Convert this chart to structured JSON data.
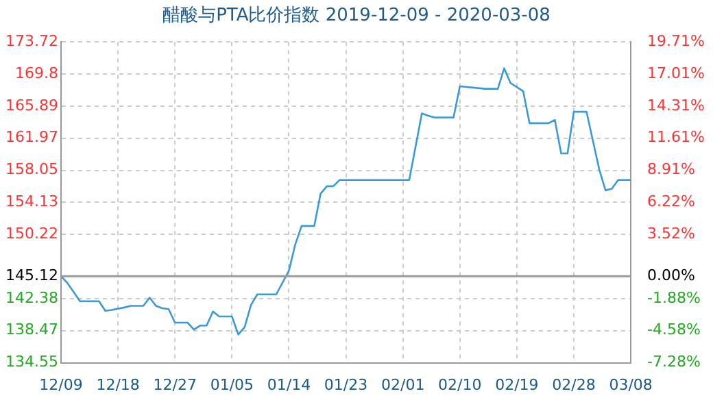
{
  "chart_data": {
    "type": "line",
    "title": "醋酸与PTA比价指数 2019-12-09 - 2020-03-08",
    "x": [
      "2019-12-09",
      "2019-12-10",
      "2019-12-12",
      "2019-12-15",
      "2019-12-16",
      "2019-12-17",
      "2019-12-19",
      "2019-12-20",
      "2019-12-22",
      "2019-12-23",
      "2019-12-24",
      "2019-12-25",
      "2019-12-26",
      "2019-12-27",
      "2019-12-29",
      "2019-12-30",
      "2019-12-31",
      "2020-01-01",
      "2020-01-02",
      "2020-01-03",
      "2020-01-05",
      "2020-01-06",
      "2020-01-07",
      "2020-01-08",
      "2020-01-09",
      "2020-01-12",
      "2020-01-14",
      "2020-01-15",
      "2020-01-16",
      "2020-01-18",
      "2020-01-19",
      "2020-01-20",
      "2020-01-21",
      "2020-01-22",
      "2020-02-02",
      "2020-02-04",
      "2020-02-05",
      "2020-02-06",
      "2020-02-09",
      "2020-02-10",
      "2020-02-14",
      "2020-02-16",
      "2020-02-17",
      "2020-02-18",
      "2020-02-20",
      "2020-02-21",
      "2020-02-24",
      "2020-02-25",
      "2020-02-26",
      "2020-02-27",
      "2020-02-28",
      "2020-03-01",
      "2020-03-03",
      "2020-03-04",
      "2020-03-05",
      "2020-03-06",
      "2020-03-08"
    ],
    "series": [
      {
        "color": "#3a9ad9",
        "values": [
          145.12,
          144.3,
          142.06,
          142.06,
          140.9,
          141.0,
          141.3,
          141.5,
          141.5,
          142.5,
          141.5,
          141.2,
          141.1,
          139.45,
          139.45,
          138.6,
          139.1,
          139.1,
          140.8,
          140.2,
          140.2,
          138.0,
          138.9,
          141.6,
          142.9,
          142.9,
          145.8,
          149.0,
          151.25,
          151.25,
          155.2,
          156.1,
          156.1,
          156.86,
          156.86,
          165.0,
          164.7,
          164.5,
          164.5,
          168.3,
          168.0,
          168.0,
          170.5,
          168.7,
          167.7,
          163.8,
          163.8,
          164.2,
          160.1,
          160.1,
          165.2,
          165.2,
          158.2,
          155.6,
          155.8,
          156.86,
          156.86
        ]
      }
    ],
    "xlim": [
      "2019-12-09",
      "2020-03-08"
    ],
    "xticks": [
      {
        "value": "2019-12-09",
        "label": "12/09"
      },
      {
        "value": "2019-12-18",
        "label": "12/18"
      },
      {
        "value": "2019-12-27",
        "label": "12/27"
      },
      {
        "value": "2020-01-05",
        "label": "01/05"
      },
      {
        "value": "2020-01-14",
        "label": "01/14"
      },
      {
        "value": "2020-01-23",
        "label": "01/23"
      },
      {
        "value": "2020-02-01",
        "label": "02/01"
      },
      {
        "value": "2020-02-10",
        "label": "02/10"
      },
      {
        "value": "2020-02-19",
        "label": "02/19"
      },
      {
        "value": "2020-02-28",
        "label": "02/28"
      },
      {
        "value": "2020-03-08",
        "label": "03/08"
      }
    ],
    "ylim": [
      134.55,
      173.72
    ],
    "yticks": [
      134.55,
      138.47,
      142.38,
      145.12,
      150.22,
      154.13,
      158.05,
      161.97,
      165.89,
      169.8,
      173.72
    ],
    "y2lim": [
      -7.28,
      19.71
    ],
    "y2ticks": [
      {
        "value": -7.28,
        "label": "-7.28%"
      },
      {
        "value": -4.58,
        "label": "-4.58%"
      },
      {
        "value": -1.88,
        "label": "-1.88%"
      },
      {
        "value": 0,
        "label": "0.00%"
      },
      {
        "value": 3.52,
        "label": "3.52%"
      },
      {
        "value": 6.22,
        "label": "6.22%"
      },
      {
        "value": 8.91,
        "label": "8.91%"
      },
      {
        "value": 11.61,
        "label": "11.61%"
      },
      {
        "value": 14.31,
        "label": "14.31%"
      },
      {
        "value": 17.01,
        "label": "17.01%"
      },
      {
        "value": 19.71,
        "label": "19.71%"
      }
    ],
    "ref_lines": [
      {
        "axis": "y",
        "value": 145.12,
        "color": "#999999",
        "line_style": "solid"
      }
    ],
    "grid": true,
    "legend": false,
    "marker": "none",
    "line_style": "solid"
  }
}
